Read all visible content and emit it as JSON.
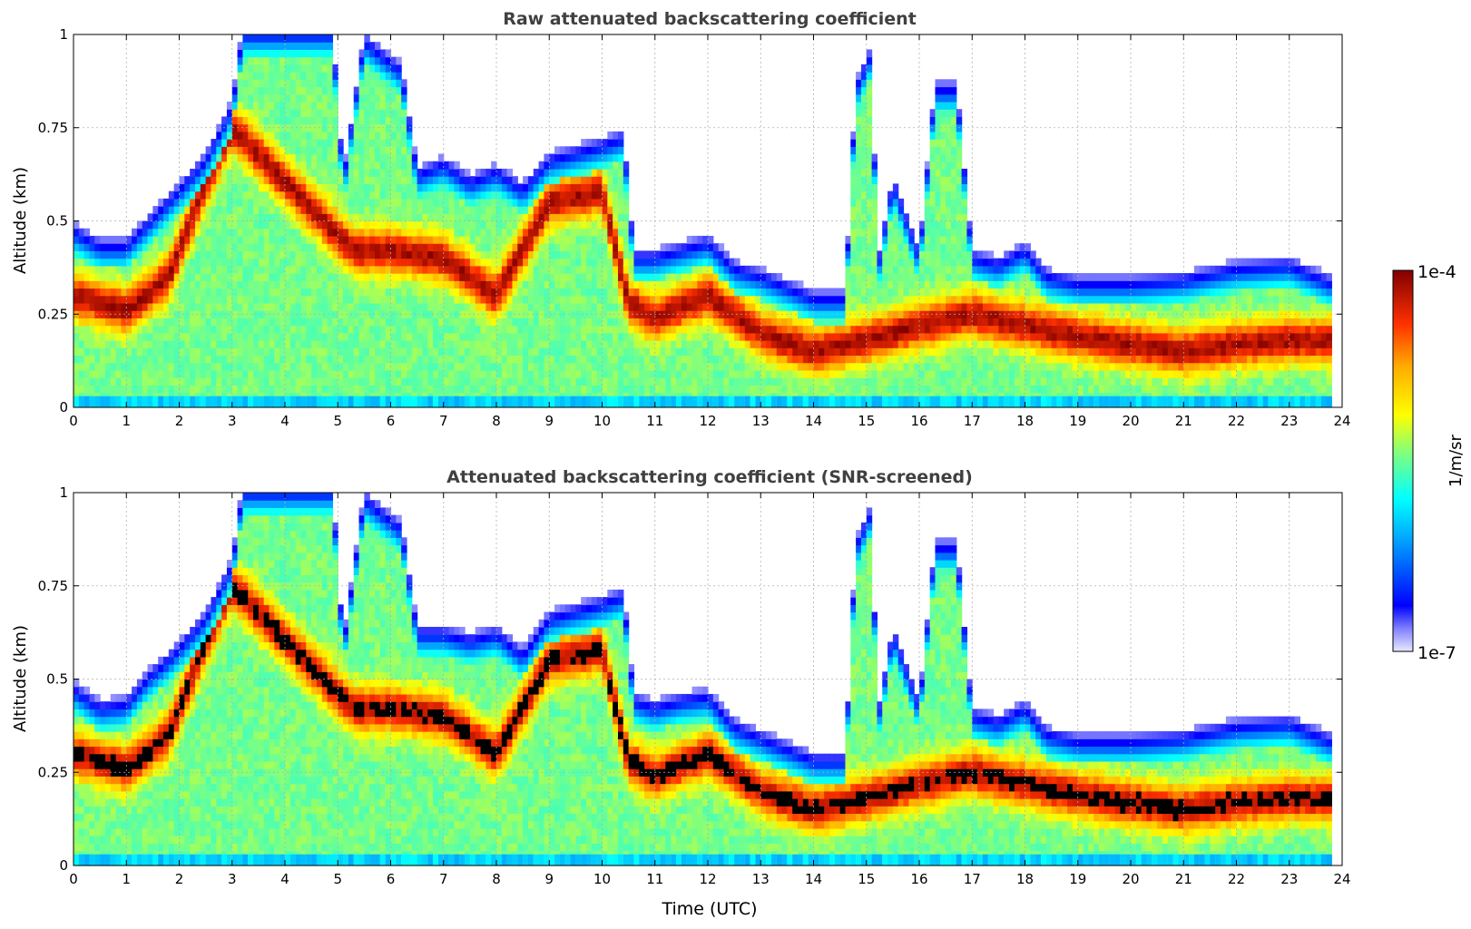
{
  "chart_data": [
    {
      "type": "heatmap",
      "title": "Raw attenuated backscattering coefficient",
      "xlabel": "",
      "ylabel": "Altitude (km)",
      "xlim": [
        0,
        24
      ],
      "ylim": [
        0,
        1
      ],
      "xticks": [
        "0",
        "1",
        "2",
        "3",
        "4",
        "5",
        "6",
        "7",
        "8",
        "9",
        "10",
        "11",
        "12",
        "13",
        "14",
        "15",
        "16",
        "17",
        "18",
        "19",
        "20",
        "21",
        "22",
        "23",
        "24"
      ],
      "yticks": [
        "0",
        "0.25",
        "0.5",
        "0.75",
        "1"
      ],
      "grid": true,
      "screened": false,
      "layer_top_km": [
        [
          0,
          0.47
        ],
        [
          0.5,
          0.43
        ],
        [
          1,
          0.43
        ],
        [
          1.4,
          0.49
        ],
        [
          1.8,
          0.55
        ],
        [
          2,
          0.58
        ],
        [
          2.5,
          0.66
        ],
        [
          3,
          0.8
        ],
        [
          3.2,
          1.0
        ],
        [
          4.9,
          1.0
        ],
        [
          5.1,
          0.6
        ],
        [
          5.5,
          0.98
        ],
        [
          6.2,
          0.9
        ],
        [
          6.5,
          0.62
        ],
        [
          7,
          0.65
        ],
        [
          7.5,
          0.6
        ],
        [
          8,
          0.63
        ],
        [
          8.5,
          0.58
        ],
        [
          9,
          0.66
        ],
        [
          9.5,
          0.68
        ],
        [
          10,
          0.7
        ],
        [
          10.4,
          0.72
        ],
        [
          10.6,
          0.4
        ],
        [
          11,
          0.4
        ],
        [
          11.5,
          0.42
        ],
        [
          12,
          0.44
        ],
        [
          12.5,
          0.37
        ],
        [
          13,
          0.35
        ],
        [
          13.5,
          0.32
        ],
        [
          14,
          0.29
        ],
        [
          14.6,
          0.29
        ],
        [
          14.8,
          0.85
        ],
        [
          15.1,
          0.95
        ],
        [
          15.2,
          0.36
        ],
        [
          15.5,
          0.6
        ],
        [
          16,
          0.4
        ],
        [
          16.3,
          0.85
        ],
        [
          16.7,
          0.85
        ],
        [
          17,
          0.4
        ],
        [
          17.5,
          0.38
        ],
        [
          18,
          0.42
        ],
        [
          18.4,
          0.35
        ],
        [
          19,
          0.33
        ],
        [
          20,
          0.33
        ],
        [
          21,
          0.34
        ],
        [
          22,
          0.37
        ],
        [
          23,
          0.38
        ],
        [
          23.8,
          0.33
        ]
      ],
      "dense_layer_km": [
        [
          0,
          0.3
        ],
        [
          1,
          0.26
        ],
        [
          1.8,
          0.35
        ],
        [
          2.5,
          0.6
        ],
        [
          3,
          0.75
        ],
        [
          5.3,
          0.42
        ],
        [
          6,
          0.42
        ],
        [
          7,
          0.4
        ],
        [
          8,
          0.3
        ],
        [
          9,
          0.55
        ],
        [
          10,
          0.58
        ],
        [
          10.5,
          0.28
        ],
        [
          11,
          0.24
        ],
        [
          12,
          0.3
        ],
        [
          13,
          0.2
        ],
        [
          14,
          0.15
        ],
        [
          15,
          0.18
        ],
        [
          16,
          0.22
        ],
        [
          17,
          0.25
        ],
        [
          18,
          0.22
        ],
        [
          19,
          0.19
        ],
        [
          20,
          0.17
        ],
        [
          21,
          0.15
        ],
        [
          22,
          0.17
        ],
        [
          23,
          0.18
        ],
        [
          23.8,
          0.18
        ]
      ]
    },
    {
      "type": "heatmap",
      "title": "Attenuated backscattering coefficient (SNR-screened)",
      "xlabel": "Time (UTC)",
      "ylabel": "Altitude (km)",
      "xlim": [
        0,
        24
      ],
      "ylim": [
        0,
        1
      ],
      "xticks": [
        "0",
        "1",
        "2",
        "3",
        "4",
        "5",
        "6",
        "7",
        "8",
        "9",
        "10",
        "11",
        "12",
        "13",
        "14",
        "15",
        "16",
        "17",
        "18",
        "19",
        "20",
        "21",
        "22",
        "23",
        "24"
      ],
      "yticks": [
        "0",
        "0.25",
        "0.5",
        "0.75",
        "1"
      ],
      "grid": true,
      "screened": true,
      "layer_top_km": [
        [
          0,
          0.47
        ],
        [
          0.5,
          0.42
        ],
        [
          1,
          0.43
        ],
        [
          1.4,
          0.5
        ],
        [
          1.8,
          0.55
        ],
        [
          2,
          0.58
        ],
        [
          2.5,
          0.66
        ],
        [
          3,
          0.8
        ],
        [
          3.2,
          1.0
        ],
        [
          4.9,
          1.0
        ],
        [
          5.1,
          0.58
        ],
        [
          5.5,
          0.98
        ],
        [
          6.2,
          0.9
        ],
        [
          6.5,
          0.62
        ],
        [
          7,
          0.62
        ],
        [
          7.5,
          0.6
        ],
        [
          8,
          0.62
        ],
        [
          8.5,
          0.56
        ],
        [
          9,
          0.66
        ],
        [
          9.5,
          0.68
        ],
        [
          10,
          0.7
        ],
        [
          10.4,
          0.72
        ],
        [
          10.6,
          0.44
        ],
        [
          11,
          0.42
        ],
        [
          11.5,
          0.44
        ],
        [
          12,
          0.45
        ],
        [
          12.5,
          0.37
        ],
        [
          13,
          0.34
        ],
        [
          13.5,
          0.31
        ],
        [
          14,
          0.28
        ],
        [
          14.6,
          0.28
        ],
        [
          14.8,
          0.85
        ],
        [
          15.1,
          0.95
        ],
        [
          15.2,
          0.38
        ],
        [
          15.5,
          0.62
        ],
        [
          16,
          0.42
        ],
        [
          16.3,
          0.85
        ],
        [
          16.7,
          0.85
        ],
        [
          17,
          0.4
        ],
        [
          17.5,
          0.38
        ],
        [
          18,
          0.42
        ],
        [
          18.4,
          0.35
        ],
        [
          19,
          0.33
        ],
        [
          20,
          0.33
        ],
        [
          21,
          0.34
        ],
        [
          22,
          0.37
        ],
        [
          23,
          0.38
        ],
        [
          23.8,
          0.33
        ]
      ],
      "dense_layer_km": [
        [
          0,
          0.3
        ],
        [
          1,
          0.26
        ],
        [
          1.8,
          0.35
        ],
        [
          2.5,
          0.6
        ],
        [
          3,
          0.75
        ],
        [
          5.3,
          0.42
        ],
        [
          6,
          0.42
        ],
        [
          7,
          0.4
        ],
        [
          8,
          0.3
        ],
        [
          9,
          0.55
        ],
        [
          10,
          0.58
        ],
        [
          10.5,
          0.28
        ],
        [
          11,
          0.24
        ],
        [
          12,
          0.3
        ],
        [
          13,
          0.2
        ],
        [
          14,
          0.15
        ],
        [
          15,
          0.18
        ],
        [
          16,
          0.22
        ],
        [
          17,
          0.25
        ],
        [
          18,
          0.22
        ],
        [
          19,
          0.19
        ],
        [
          20,
          0.17
        ],
        [
          21,
          0.15
        ],
        [
          22,
          0.17
        ],
        [
          23,
          0.18
        ],
        [
          23.8,
          0.18
        ]
      ]
    }
  ],
  "colorbar": {
    "label": "1/m/sr",
    "max_label": "1e-4",
    "min_label": "1e-7",
    "colormap": "jet",
    "scale": "log"
  },
  "colors": {
    "title": "#404040",
    "grid": "#b0b0b0",
    "saturated_screened": "#000000"
  }
}
